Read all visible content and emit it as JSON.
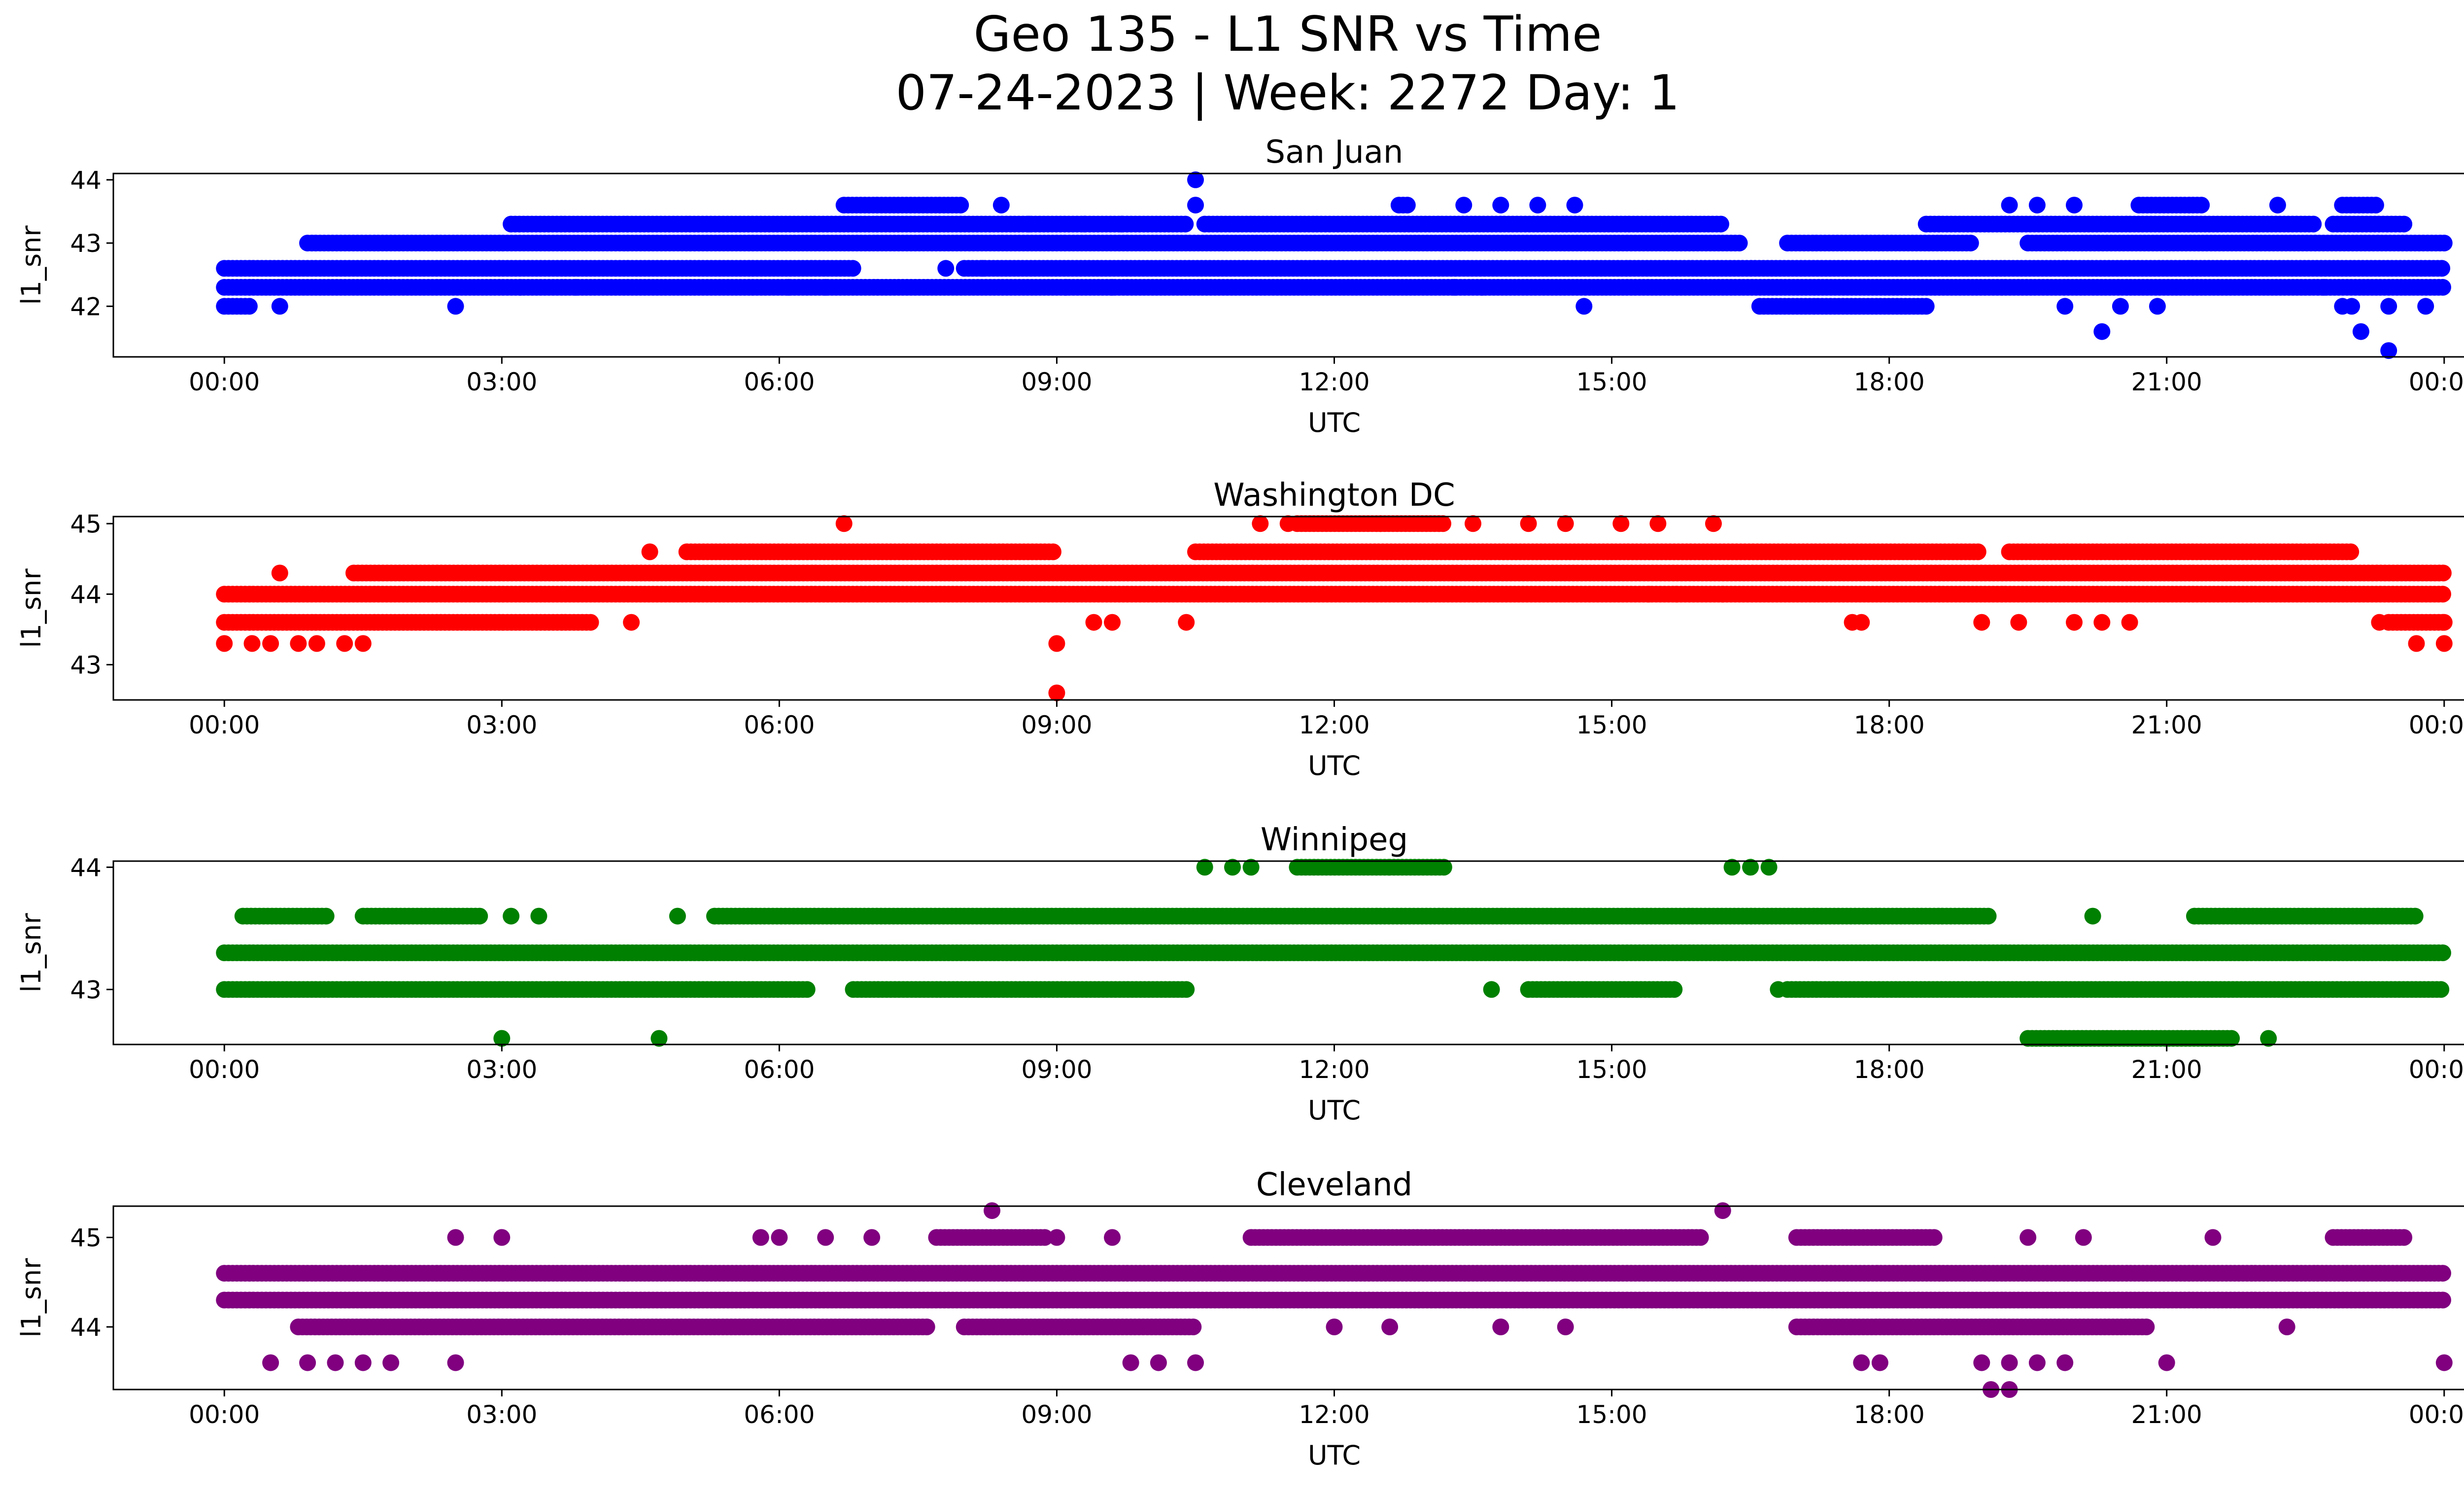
{
  "figure": {
    "title_line1": "Geo 135 - L1 SNR vs Time",
    "title_line2": "07-24-2023 | Week: 2272 Day: 1"
  },
  "chart_data": [
    {
      "type": "scatter",
      "title": "San Juan",
      "xlabel": "UTC",
      "ylabel": "l1_snr",
      "color": "#0000ff",
      "x_ticks": [
        "00:00",
        "03:00",
        "06:00",
        "09:00",
        "12:00",
        "15:00",
        "18:00",
        "21:00",
        "00:00"
      ],
      "xlim_hours": [
        -1.2,
        25.2
      ],
      "y_ticks": [
        42,
        43,
        44
      ],
      "ylim": [
        41.2,
        44.1
      ],
      "levels": [
        {
          "y": 42.3,
          "segments": [
            [
              0.0,
              24.0
            ]
          ]
        },
        {
          "y": 42.6,
          "segments": [
            [
              0.0,
              6.8
            ],
            [
              8.0,
              24.0
            ]
          ]
        },
        {
          "y": 43.0,
          "segments": [
            [
              0.9,
              16.4
            ],
            [
              16.9,
              18.9
            ],
            [
              19.5,
              24.0
            ]
          ]
        },
        {
          "y": 43.3,
          "segments": [
            [
              3.1,
              10.4
            ],
            [
              10.6,
              16.2
            ],
            [
              18.4,
              22.6
            ],
            [
              22.8,
              23.6
            ]
          ]
        },
        {
          "y": 43.6,
          "segments": [
            [
              6.7,
              8.0
            ],
            [
              12.7,
              12.8
            ],
            [
              20.7,
              21.4
            ],
            [
              22.9,
              23.3
            ]
          ]
        },
        {
          "y": 42.0,
          "segments": [
            [
              0.0,
              0.3
            ],
            [
              16.6,
              18.4
            ]
          ]
        }
      ],
      "points": [
        [
          0.6,
          42.0
        ],
        [
          2.5,
          42.0
        ],
        [
          3.2,
          42.3
        ],
        [
          3.8,
          42.3
        ],
        [
          6.1,
          42.3
        ],
        [
          6.5,
          42.3
        ],
        [
          9.1,
          42.3
        ],
        [
          9.6,
          42.3
        ],
        [
          13.3,
          42.3
        ],
        [
          13.6,
          42.3
        ],
        [
          14.7,
          42.0
        ],
        [
          14.6,
          43.6
        ],
        [
          10.5,
          44.0
        ],
        [
          10.5,
          43.6
        ],
        [
          13.4,
          43.6
        ],
        [
          13.8,
          43.6
        ],
        [
          14.2,
          43.6
        ],
        [
          8.4,
          43.6
        ],
        [
          7.8,
          42.6
        ],
        [
          8.2,
          42.6
        ],
        [
          19.3,
          43.6
        ],
        [
          19.6,
          43.6
        ],
        [
          20.0,
          43.6
        ],
        [
          22.2,
          43.6
        ],
        [
          20.3,
          41.6
        ],
        [
          19.9,
          42.0
        ],
        [
          20.5,
          42.0
        ],
        [
          20.9,
          42.0
        ],
        [
          23.0,
          42.0
        ],
        [
          23.4,
          42.0
        ],
        [
          23.1,
          41.6
        ],
        [
          23.4,
          41.3
        ],
        [
          22.7,
          42.3
        ],
        [
          22.9,
          42.0
        ],
        [
          23.8,
          42.0
        ],
        [
          8.7,
          43.3
        ],
        [
          9.3,
          43.3
        ],
        [
          9.7,
          43.3
        ]
      ]
    },
    {
      "type": "scatter",
      "title": "Washington DC",
      "xlabel": "UTC",
      "ylabel": "l1_snr",
      "color": "#ff0000",
      "x_ticks": [
        "00:00",
        "03:00",
        "06:00",
        "09:00",
        "12:00",
        "15:00",
        "18:00",
        "21:00",
        "00:00"
      ],
      "xlim_hours": [
        -1.2,
        25.2
      ],
      "y_ticks": [
        43,
        44,
        45
      ],
      "ylim": [
        42.5,
        45.1
      ],
      "levels": [
        {
          "y": 44.0,
          "segments": [
            [
              0.0,
              24.0
            ]
          ]
        },
        {
          "y": 43.6,
          "segments": [
            [
              0.0,
              4.0
            ]
          ]
        },
        {
          "y": 44.3,
          "segments": [
            [
              1.4,
              24.0
            ]
          ]
        },
        {
          "y": 44.6,
          "segments": [
            [
              5.0,
              9.0
            ],
            [
              10.5,
              19.0
            ],
            [
              19.3,
              23.0
            ]
          ]
        },
        {
          "y": 45.0,
          "segments": [
            [
              11.6,
              12.5
            ],
            [
              12.5,
              13.2
            ]
          ]
        },
        {
          "y": 43.6,
          "segments": [
            [
              23.4,
              24.0
            ]
          ]
        }
      ],
      "points": [
        [
          0.0,
          43.3
        ],
        [
          0.3,
          43.3
        ],
        [
          0.5,
          43.3
        ],
        [
          0.8,
          43.3
        ],
        [
          1.0,
          43.3
        ],
        [
          1.3,
          43.3
        ],
        [
          1.5,
          43.3
        ],
        [
          0.6,
          44.3
        ],
        [
          4.4,
          43.6
        ],
        [
          4.6,
          44.6
        ],
        [
          6.7,
          45.0
        ],
        [
          9.0,
          43.3
        ],
        [
          9.0,
          42.6
        ],
        [
          9.4,
          43.6
        ],
        [
          9.6,
          43.6
        ],
        [
          10.4,
          43.6
        ],
        [
          11.2,
          45.0
        ],
        [
          11.5,
          45.0
        ],
        [
          13.5,
          45.0
        ],
        [
          14.1,
          45.0
        ],
        [
          14.5,
          45.0
        ],
        [
          15.1,
          45.0
        ],
        [
          15.5,
          45.0
        ],
        [
          16.1,
          45.0
        ],
        [
          15.4,
          44.0
        ],
        [
          15.7,
          44.0
        ],
        [
          16.2,
          44.0
        ],
        [
          17.6,
          43.6
        ],
        [
          17.7,
          43.6
        ],
        [
          19.0,
          43.6
        ],
        [
          19.4,
          43.6
        ],
        [
          20.0,
          43.6
        ],
        [
          20.3,
          43.6
        ],
        [
          20.6,
          43.6
        ],
        [
          23.3,
          43.6
        ],
        [
          23.7,
          43.3
        ],
        [
          24.0,
          43.3
        ],
        [
          24.0,
          43.6
        ]
      ]
    },
    {
      "type": "scatter",
      "title": "Winnipeg",
      "xlabel": "UTC",
      "ylabel": "l1_snr",
      "color": "#008000",
      "x_ticks": [
        "00:00",
        "03:00",
        "06:00",
        "09:00",
        "12:00",
        "15:00",
        "18:00",
        "21:00",
        "00:00"
      ],
      "xlim_hours": [
        -1.2,
        25.2
      ],
      "y_ticks": [
        43,
        44
      ],
      "ylim": [
        42.55,
        44.05
      ],
      "levels": [
        {
          "y": 43.3,
          "segments": [
            [
              0.0,
              24.0
            ]
          ]
        },
        {
          "y": 43.0,
          "segments": [
            [
              0.0,
              6.3
            ],
            [
              6.8,
              10.4
            ],
            [
              14.1,
              15.7
            ],
            [
              16.9,
              24.0
            ]
          ]
        },
        {
          "y": 43.6,
          "segments": [
            [
              0.2,
              1.1
            ],
            [
              1.5,
              2.8
            ],
            [
              5.3,
              19.1
            ],
            [
              21.3,
              23.7
            ]
          ]
        },
        {
          "y": 44.0,
          "segments": [
            [
              11.6,
              12.6
            ],
            [
              12.6,
              13.2
            ]
          ]
        },
        {
          "y": 42.6,
          "segments": [
            [
              19.5,
              20.8
            ],
            [
              20.8,
              21.7
            ]
          ]
        }
      ],
      "points": [
        [
          3.0,
          42.6
        ],
        [
          4.7,
          42.6
        ],
        [
          3.1,
          43.6
        ],
        [
          3.4,
          43.6
        ],
        [
          4.9,
          43.6
        ],
        [
          10.6,
          44.0
        ],
        [
          10.9,
          44.0
        ],
        [
          11.1,
          44.0
        ],
        [
          16.3,
          44.0
        ],
        [
          16.5,
          44.0
        ],
        [
          16.7,
          44.0
        ],
        [
          13.7,
          43.0
        ],
        [
          16.8,
          43.0
        ],
        [
          20.2,
          43.6
        ],
        [
          22.1,
          42.6
        ]
      ]
    },
    {
      "type": "scatter",
      "title": "Cleveland",
      "xlabel": "UTC",
      "ylabel": "l1_snr",
      "color": "#800080",
      "x_ticks": [
        "00:00",
        "03:00",
        "06:00",
        "09:00",
        "12:00",
        "15:00",
        "18:00",
        "21:00",
        "00:00"
      ],
      "xlim_hours": [
        -1.2,
        25.2
      ],
      "y_ticks": [
        44,
        45
      ],
      "ylim": [
        43.3,
        45.35
      ],
      "levels": [
        {
          "y": 44.3,
          "segments": [
            [
              0.0,
              24.0
            ]
          ]
        },
        {
          "y": 44.6,
          "segments": [
            [
              0.0,
              24.0
            ]
          ]
        },
        {
          "y": 44.0,
          "segments": [
            [
              0.8,
              7.6
            ],
            [
              8.0,
              10.5
            ],
            [
              17.0,
              20.8
            ]
          ]
        },
        {
          "y": 45.0,
          "segments": [
            [
              11.1,
              16.0
            ],
            [
              17.0,
              18.5
            ],
            [
              22.8,
              23.6
            ]
          ]
        },
        {
          "y": 45.0,
          "segments": [
            [
              7.7,
              8.9
            ]
          ]
        }
      ],
      "points": [
        [
          0.5,
          43.6
        ],
        [
          0.9,
          43.6
        ],
        [
          1.2,
          43.6
        ],
        [
          1.5,
          43.6
        ],
        [
          1.8,
          43.6
        ],
        [
          2.5,
          43.6
        ],
        [
          2.5,
          45.0
        ],
        [
          3.0,
          45.0
        ],
        [
          5.8,
          45.0
        ],
        [
          6.0,
          45.0
        ],
        [
          6.5,
          45.0
        ],
        [
          7.0,
          45.0
        ],
        [
          8.3,
          45.3
        ],
        [
          16.2,
          45.3
        ],
        [
          9.0,
          45.0
        ],
        [
          9.6,
          45.0
        ],
        [
          9.8,
          43.6
        ],
        [
          10.1,
          43.6
        ],
        [
          10.5,
          43.6
        ],
        [
          12.0,
          44.0
        ],
        [
          12.6,
          44.0
        ],
        [
          13.8,
          44.0
        ],
        [
          14.5,
          44.0
        ],
        [
          17.7,
          43.6
        ],
        [
          17.9,
          43.6
        ],
        [
          19.0,
          43.6
        ],
        [
          19.3,
          43.6
        ],
        [
          19.1,
          43.3
        ],
        [
          19.3,
          43.3
        ],
        [
          19.6,
          43.6
        ],
        [
          19.9,
          43.6
        ],
        [
          21.0,
          43.6
        ],
        [
          22.3,
          44.0
        ],
        [
          24.0,
          43.6
        ],
        [
          19.5,
          45.0
        ],
        [
          20.1,
          45.0
        ],
        [
          21.5,
          45.0
        ]
      ]
    }
  ]
}
